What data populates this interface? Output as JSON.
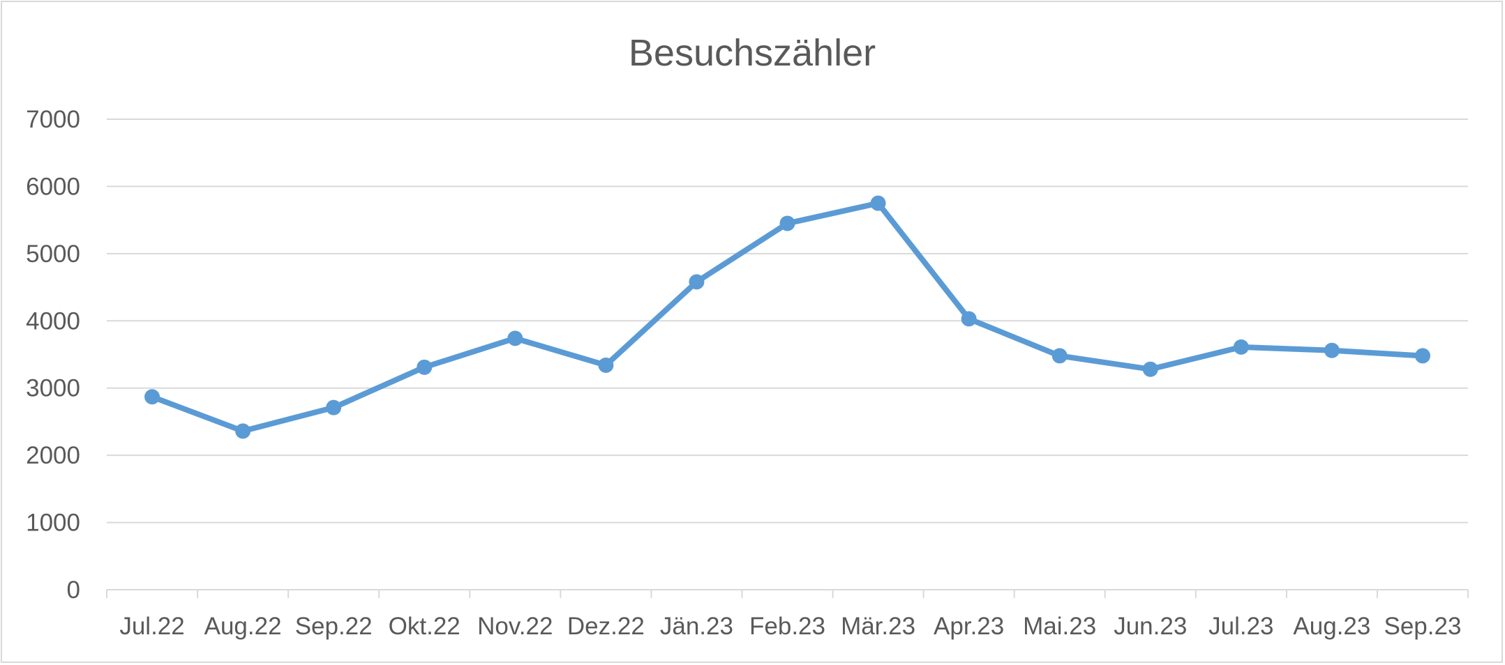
{
  "chart_data": {
    "type": "line",
    "title": "Besuchszähler",
    "xlabel": "",
    "ylabel": "",
    "categories": [
      "Jul.22",
      "Aug.22",
      "Sep.22",
      "Okt.22",
      "Nov.22",
      "Dez.22",
      "Jän.23",
      "Feb.23",
      "Mär.23",
      "Apr.23",
      "Mai.23",
      "Jun.23",
      "Jul.23",
      "Aug.23",
      "Sep.23"
    ],
    "series": [
      {
        "values": [
          2870,
          2360,
          2710,
          3310,
          3740,
          3340,
          4580,
          5450,
          5750,
          4030,
          3480,
          3280,
          3610,
          3560,
          3480
        ]
      }
    ],
    "ylim": [
      0,
      7000
    ],
    "yticks": [
      0,
      1000,
      2000,
      3000,
      4000,
      5000,
      6000,
      7000
    ],
    "grid": true,
    "legend": "none",
    "colors": {
      "line": "#5b9bd5",
      "grid": "#d9d9d9",
      "axis": "#d9d9d9",
      "text": "#595959"
    }
  }
}
